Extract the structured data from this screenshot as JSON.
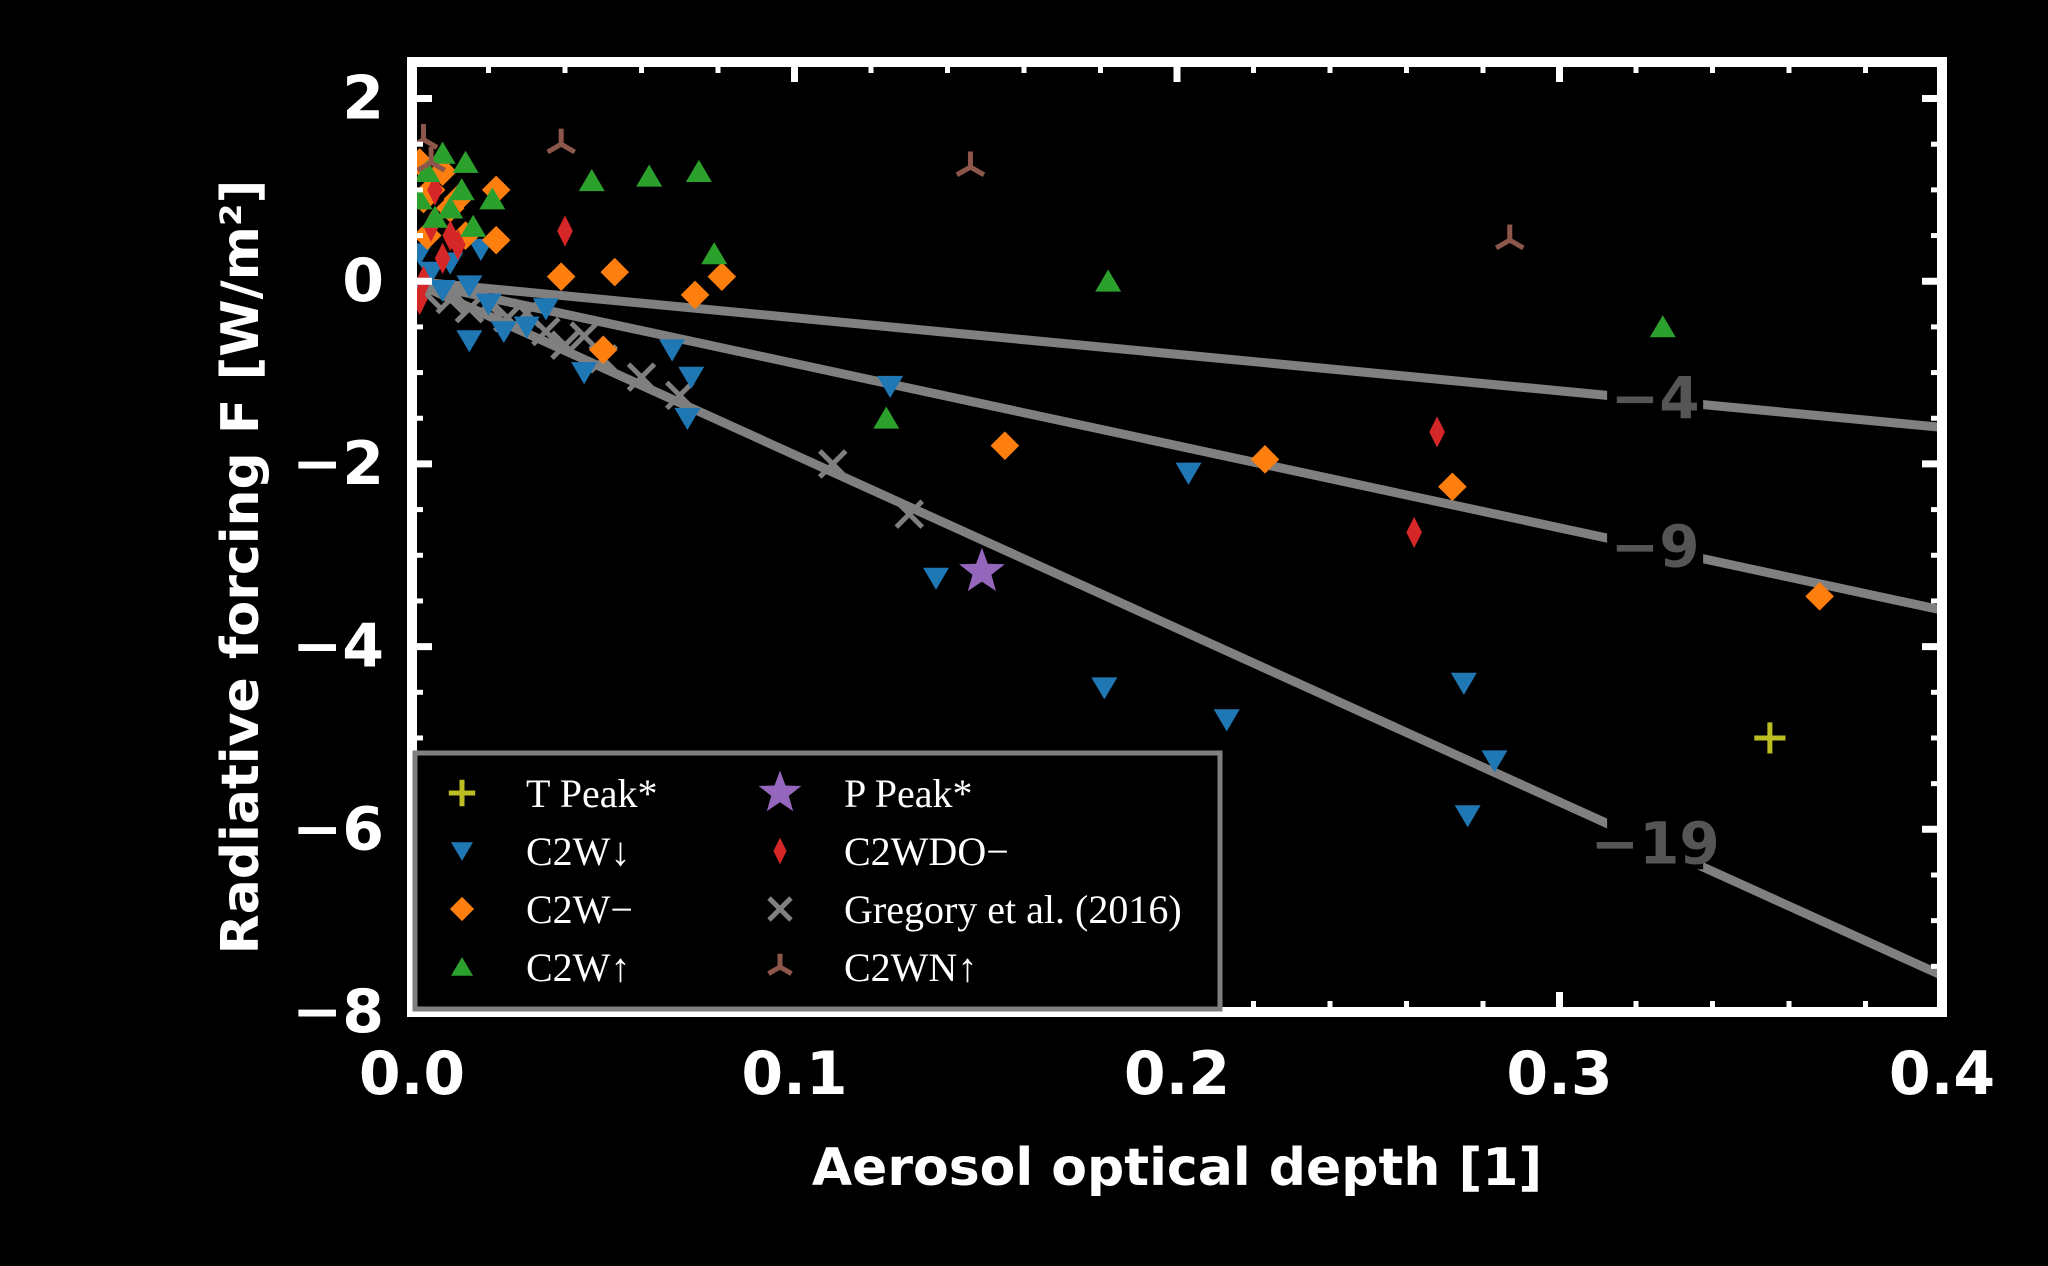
{
  "chart_data": {
    "type": "scatter",
    "xlabel": "Aerosol optical depth [1]",
    "ylabel": "Radiative forcing F [W/m²]",
    "xlim": [
      0,
      0.4
    ],
    "ylim": [
      -8,
      2.4
    ],
    "x_ticks": [
      {
        "value": 0.0,
        "label": "0.0"
      },
      {
        "value": 0.1,
        "label": "0.1"
      },
      {
        "value": 0.2,
        "label": "0.2"
      },
      {
        "value": 0.3,
        "label": "0.3"
      },
      {
        "value": 0.4,
        "label": "0.4"
      }
    ],
    "y_ticks": [
      {
        "value": 2,
        "label": "2"
      },
      {
        "value": 0,
        "label": "0"
      },
      {
        "value": -2,
        "label": "−2"
      },
      {
        "value": -4,
        "label": "−4"
      },
      {
        "value": -6,
        "label": "−6"
      },
      {
        "value": -8,
        "label": "−8"
      }
    ],
    "legend": {
      "position": "lower-left",
      "columns": 2
    },
    "reference_lines": [
      {
        "label": "−4",
        "slope": -4,
        "intercept": 0,
        "color": "#808080"
      },
      {
        "label": "−9",
        "slope": -9,
        "intercept": 0,
        "color": "#808080"
      },
      {
        "label": "−19",
        "slope": -19,
        "intercept": 0,
        "color": "#808080"
      }
    ],
    "series": [
      {
        "name": "T Peak*",
        "marker": "plus",
        "color": "#bcbd22",
        "points": [
          [
            0.355,
            -5.0
          ]
        ]
      },
      {
        "name": "P Peak*",
        "marker": "star",
        "color": "#9467bd",
        "points": [
          [
            0.149,
            -3.18
          ]
        ]
      },
      {
        "name": "C2W↓",
        "marker": "triangle-down",
        "color": "#1f77b4",
        "points": [
          [
            0.002,
            0.3
          ],
          [
            0.005,
            0.1
          ],
          [
            0.008,
            -0.1
          ],
          [
            0.01,
            0.2
          ],
          [
            0.015,
            -0.05
          ],
          [
            0.015,
            -0.65
          ],
          [
            0.018,
            0.35
          ],
          [
            0.02,
            -0.25
          ],
          [
            0.024,
            -0.55
          ],
          [
            0.03,
            -0.5
          ],
          [
            0.035,
            -0.3
          ],
          [
            0.045,
            -1.0
          ],
          [
            0.068,
            -0.75
          ],
          [
            0.072,
            -1.5
          ],
          [
            0.073,
            -1.05
          ],
          [
            0.125,
            -1.15
          ],
          [
            0.137,
            -3.25
          ],
          [
            0.181,
            -4.45
          ],
          [
            0.203,
            -2.1
          ],
          [
            0.213,
            -4.8
          ],
          [
            0.275,
            -4.4
          ],
          [
            0.283,
            -5.25
          ],
          [
            0.276,
            -5.85
          ]
        ]
      },
      {
        "name": "C2W−",
        "marker": "diamond",
        "color": "#ff7f0e",
        "points": [
          [
            0.002,
            1.3
          ],
          [
            0.003,
            0.9
          ],
          [
            0.004,
            0.5
          ],
          [
            0.005,
            1.0
          ],
          [
            0.008,
            1.2
          ],
          [
            0.01,
            0.8
          ],
          [
            0.012,
            0.9
          ],
          [
            0.014,
            0.5
          ],
          [
            0.022,
            0.45
          ],
          [
            0.022,
            1.0
          ],
          [
            0.039,
            0.05
          ],
          [
            0.053,
            0.1
          ],
          [
            0.05,
            -0.75
          ],
          [
            0.074,
            -0.15
          ],
          [
            0.081,
            0.05
          ],
          [
            0.155,
            -1.8
          ],
          [
            0.223,
            -1.95
          ],
          [
            0.272,
            -2.25
          ],
          [
            0.368,
            -3.45
          ]
        ]
      },
      {
        "name": "C2WDO−",
        "marker": "thin-diamond",
        "color": "#d62728",
        "points": [
          [
            0.002,
            -0.2
          ],
          [
            0.003,
            0.0
          ],
          [
            0.005,
            0.6
          ],
          [
            0.006,
            1.0
          ],
          [
            0.008,
            0.25
          ],
          [
            0.01,
            0.5
          ],
          [
            0.012,
            0.4
          ],
          [
            0.04,
            0.55
          ],
          [
            0.262,
            -2.75
          ],
          [
            0.268,
            -1.65
          ]
        ]
      },
      {
        "name": "Gregory et al. (2016)",
        "marker": "x",
        "color": "#7f7f7f",
        "points": [
          [
            0.004,
            -0.15
          ],
          [
            0.01,
            -0.2
          ],
          [
            0.015,
            -0.3
          ],
          [
            0.02,
            -0.25
          ],
          [
            0.025,
            -0.4
          ],
          [
            0.03,
            -0.35
          ],
          [
            0.035,
            -0.55
          ],
          [
            0.04,
            -0.7
          ],
          [
            0.045,
            -0.6
          ],
          [
            0.05,
            -0.85
          ],
          [
            0.06,
            -1.05
          ],
          [
            0.07,
            -1.25
          ],
          [
            0.11,
            -2.0
          ],
          [
            0.13,
            -2.55
          ]
        ]
      },
      {
        "name": "C2W↑",
        "marker": "triangle-up",
        "color": "#2ca02c",
        "points": [
          [
            0.002,
            0.9
          ],
          [
            0.004,
            1.2
          ],
          [
            0.006,
            0.7
          ],
          [
            0.008,
            1.4
          ],
          [
            0.01,
            0.8
          ],
          [
            0.013,
            1.0
          ],
          [
            0.014,
            1.3
          ],
          [
            0.016,
            0.6
          ],
          [
            0.021,
            0.9
          ],
          [
            0.047,
            1.1
          ],
          [
            0.062,
            1.15
          ],
          [
            0.075,
            1.2
          ],
          [
            0.079,
            0.3
          ],
          [
            0.124,
            -1.5
          ],
          [
            0.182,
            0.0
          ],
          [
            0.327,
            -0.5
          ]
        ]
      },
      {
        "name": "C2WN↑",
        "marker": "tri-up",
        "color": "#8c564b",
        "points": [
          [
            0.003,
            1.55
          ],
          [
            0.005,
            1.3
          ],
          [
            0.039,
            1.5
          ],
          [
            0.146,
            1.25
          ],
          [
            0.287,
            0.45
          ]
        ]
      }
    ]
  }
}
